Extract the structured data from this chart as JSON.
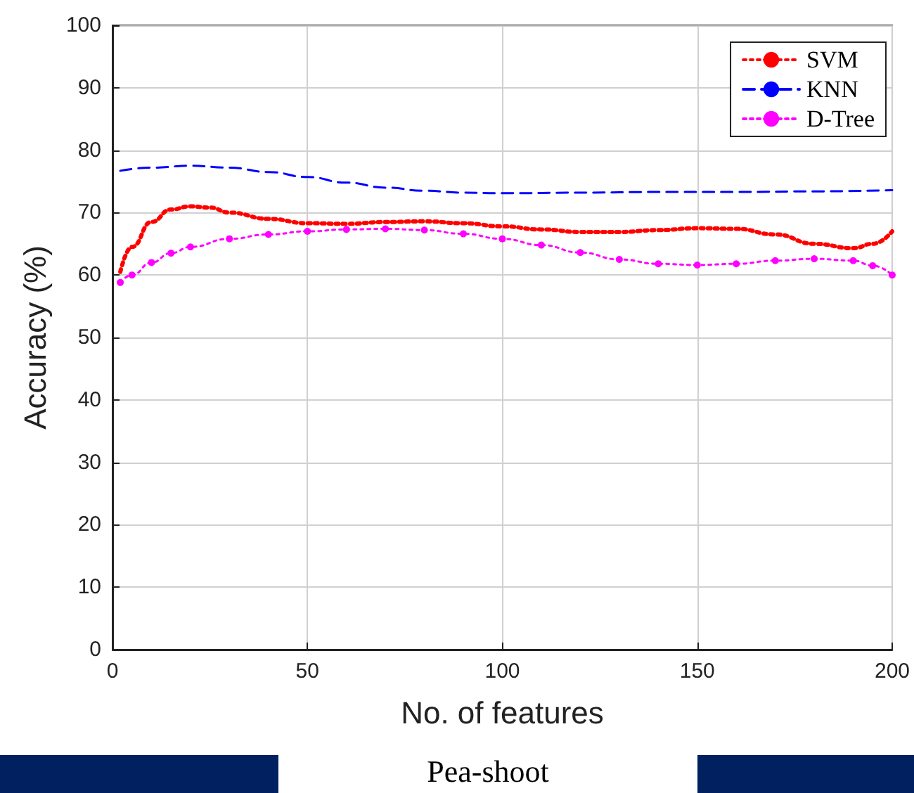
{
  "chart_data": {
    "type": "line",
    "xlabel": "No. of features",
    "ylabel": "Accuracy (%)",
    "annotations": [
      "Pea-shoot"
    ],
    "xlim": [
      0,
      200
    ],
    "xticks": [
      0,
      50,
      100,
      150,
      200
    ],
    "ylim": [
      0,
      100
    ],
    "yticks": [
      0,
      10,
      20,
      30,
      40,
      50,
      60,
      70,
      80,
      90,
      100
    ],
    "grid": true,
    "legend": "top right",
    "series": [
      {
        "name": "SVM",
        "color": "#ff0000",
        "line_style": "dotted",
        "marker": "none",
        "x": [
          2,
          5,
          10,
          15,
          20,
          25,
          30,
          40,
          50,
          60,
          70,
          80,
          90,
          100,
          110,
          120,
          130,
          140,
          150,
          160,
          170,
          180,
          190,
          195,
          200
        ],
        "values": [
          60.5,
          64.5,
          68.5,
          70.5,
          71,
          70.8,
          70,
          69,
          68.3,
          68.2,
          68.5,
          68.6,
          68.3,
          67.8,
          67.3,
          66.9,
          66.9,
          67.2,
          67.5,
          67.4,
          66.5,
          65,
          64.3,
          65,
          67
        ]
      },
      {
        "name": "KNN",
        "color": "#0000ff",
        "line_style": "dashed",
        "marker": "none",
        "x": [
          2,
          10,
          20,
          30,
          40,
          50,
          60,
          70,
          80,
          90,
          100,
          120,
          140,
          160,
          180,
          200
        ],
        "values": [
          76.7,
          77.2,
          77.5,
          77.2,
          76.5,
          75.7,
          74.8,
          74,
          73.5,
          73.2,
          73.1,
          73.2,
          73.3,
          73.3,
          73.4,
          73.6
        ]
      },
      {
        "name": "D-Tree",
        "color": "#ff00ff",
        "line_style": "dotted",
        "marker": "circle",
        "x": [
          2,
          5,
          10,
          15,
          20,
          30,
          40,
          50,
          60,
          70,
          80,
          90,
          100,
          110,
          120,
          130,
          140,
          150,
          160,
          170,
          180,
          190,
          195,
          200
        ],
        "values": [
          58.8,
          60,
          62,
          63.5,
          64.5,
          65.8,
          66.5,
          67,
          67.3,
          67.4,
          67.2,
          66.6,
          65.8,
          64.8,
          63.6,
          62.5,
          61.8,
          61.6,
          61.8,
          62.3,
          62.6,
          62.3,
          61.5,
          60
        ]
      }
    ]
  }
}
